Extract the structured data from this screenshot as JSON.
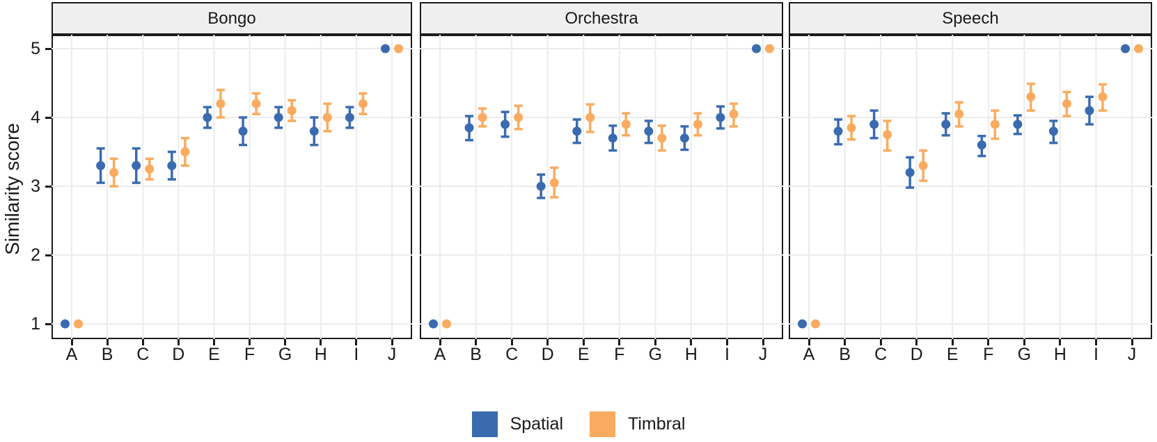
{
  "chart_data": {
    "type": "scatter",
    "title": "",
    "xlabel": "",
    "ylabel": "Similarity score",
    "ylim": [
      1,
      5
    ],
    "yticks": [
      1,
      2,
      3,
      4,
      5
    ],
    "grid": "major-only",
    "legend_position": "bottom",
    "categories": [
      "A",
      "B",
      "C",
      "D",
      "E",
      "F",
      "G",
      "H",
      "I",
      "J"
    ],
    "series_names": [
      "Spatial",
      "Timbral"
    ],
    "colors": {
      "spatial": "#3A6BB0",
      "timbral": "#FAAB5F"
    },
    "facets": [
      {
        "label": "Bongo",
        "series": [
          {
            "name": "Spatial",
            "means": [
              1.0,
              3.3,
              3.3,
              3.3,
              4.0,
              3.8,
              4.0,
              3.8,
              4.0,
              5.0
            ],
            "lower": [
              1.0,
              3.05,
              3.05,
              3.1,
              3.85,
              3.6,
              3.85,
              3.6,
              3.85,
              5.0
            ],
            "upper": [
              1.0,
              3.55,
              3.55,
              3.5,
              4.15,
              4.0,
              4.15,
              4.0,
              4.15,
              5.0
            ]
          },
          {
            "name": "Timbral",
            "means": [
              1.0,
              3.2,
              3.25,
              3.5,
              4.2,
              4.2,
              4.1,
              4.0,
              4.2,
              5.0
            ],
            "lower": [
              1.0,
              3.0,
              3.1,
              3.3,
              4.0,
              4.05,
              3.95,
              3.8,
              4.05,
              5.0
            ],
            "upper": [
              1.0,
              3.4,
              3.4,
              3.7,
              4.4,
              4.35,
              4.25,
              4.2,
              4.35,
              5.0
            ]
          }
        ]
      },
      {
        "label": "Orchestra",
        "series": [
          {
            "name": "Spatial",
            "means": [
              1.0,
              3.85,
              3.9,
              3.0,
              3.8,
              3.7,
              3.8,
              3.7,
              4.0,
              5.0
            ],
            "lower": [
              1.0,
              3.67,
              3.72,
              2.83,
              3.63,
              3.52,
              3.63,
              3.53,
              3.84,
              5.0
            ],
            "upper": [
              1.0,
              4.02,
              4.08,
              3.17,
              3.97,
              3.88,
              3.95,
              3.87,
              4.16,
              5.0
            ]
          },
          {
            "name": "Timbral",
            "means": [
              1.0,
              4.0,
              4.0,
              3.05,
              4.0,
              3.9,
              3.7,
              3.9,
              4.05,
              5.0
            ],
            "lower": [
              1.0,
              3.87,
              3.83,
              2.84,
              3.79,
              3.74,
              3.52,
              3.74,
              3.87,
              5.0
            ],
            "upper": [
              1.0,
              4.13,
              4.17,
              3.27,
              4.19,
              4.06,
              3.88,
              4.06,
              4.2,
              5.0
            ]
          }
        ]
      },
      {
        "label": "Speech",
        "series": [
          {
            "name": "Spatial",
            "means": [
              1.0,
              3.8,
              3.9,
              3.2,
              3.9,
              3.6,
              3.9,
              3.8,
              4.1,
              5.0
            ],
            "lower": [
              1.0,
              3.61,
              3.7,
              2.98,
              3.74,
              3.44,
              3.76,
              3.63,
              3.9,
              5.0
            ],
            "upper": [
              1.0,
              3.97,
              4.1,
              3.42,
              4.06,
              3.73,
              4.03,
              3.95,
              4.3,
              5.0
            ]
          },
          {
            "name": "Timbral",
            "means": [
              1.0,
              3.85,
              3.75,
              3.3,
              4.05,
              3.9,
              4.3,
              4.2,
              4.3,
              5.0
            ],
            "lower": [
              1.0,
              3.68,
              3.52,
              3.08,
              3.87,
              3.69,
              4.1,
              4.02,
              4.1,
              5.0
            ],
            "upper": [
              1.0,
              4.02,
              3.95,
              3.52,
              4.22,
              4.1,
              4.49,
              4.37,
              4.48,
              5.0
            ]
          }
        ]
      }
    ]
  }
}
